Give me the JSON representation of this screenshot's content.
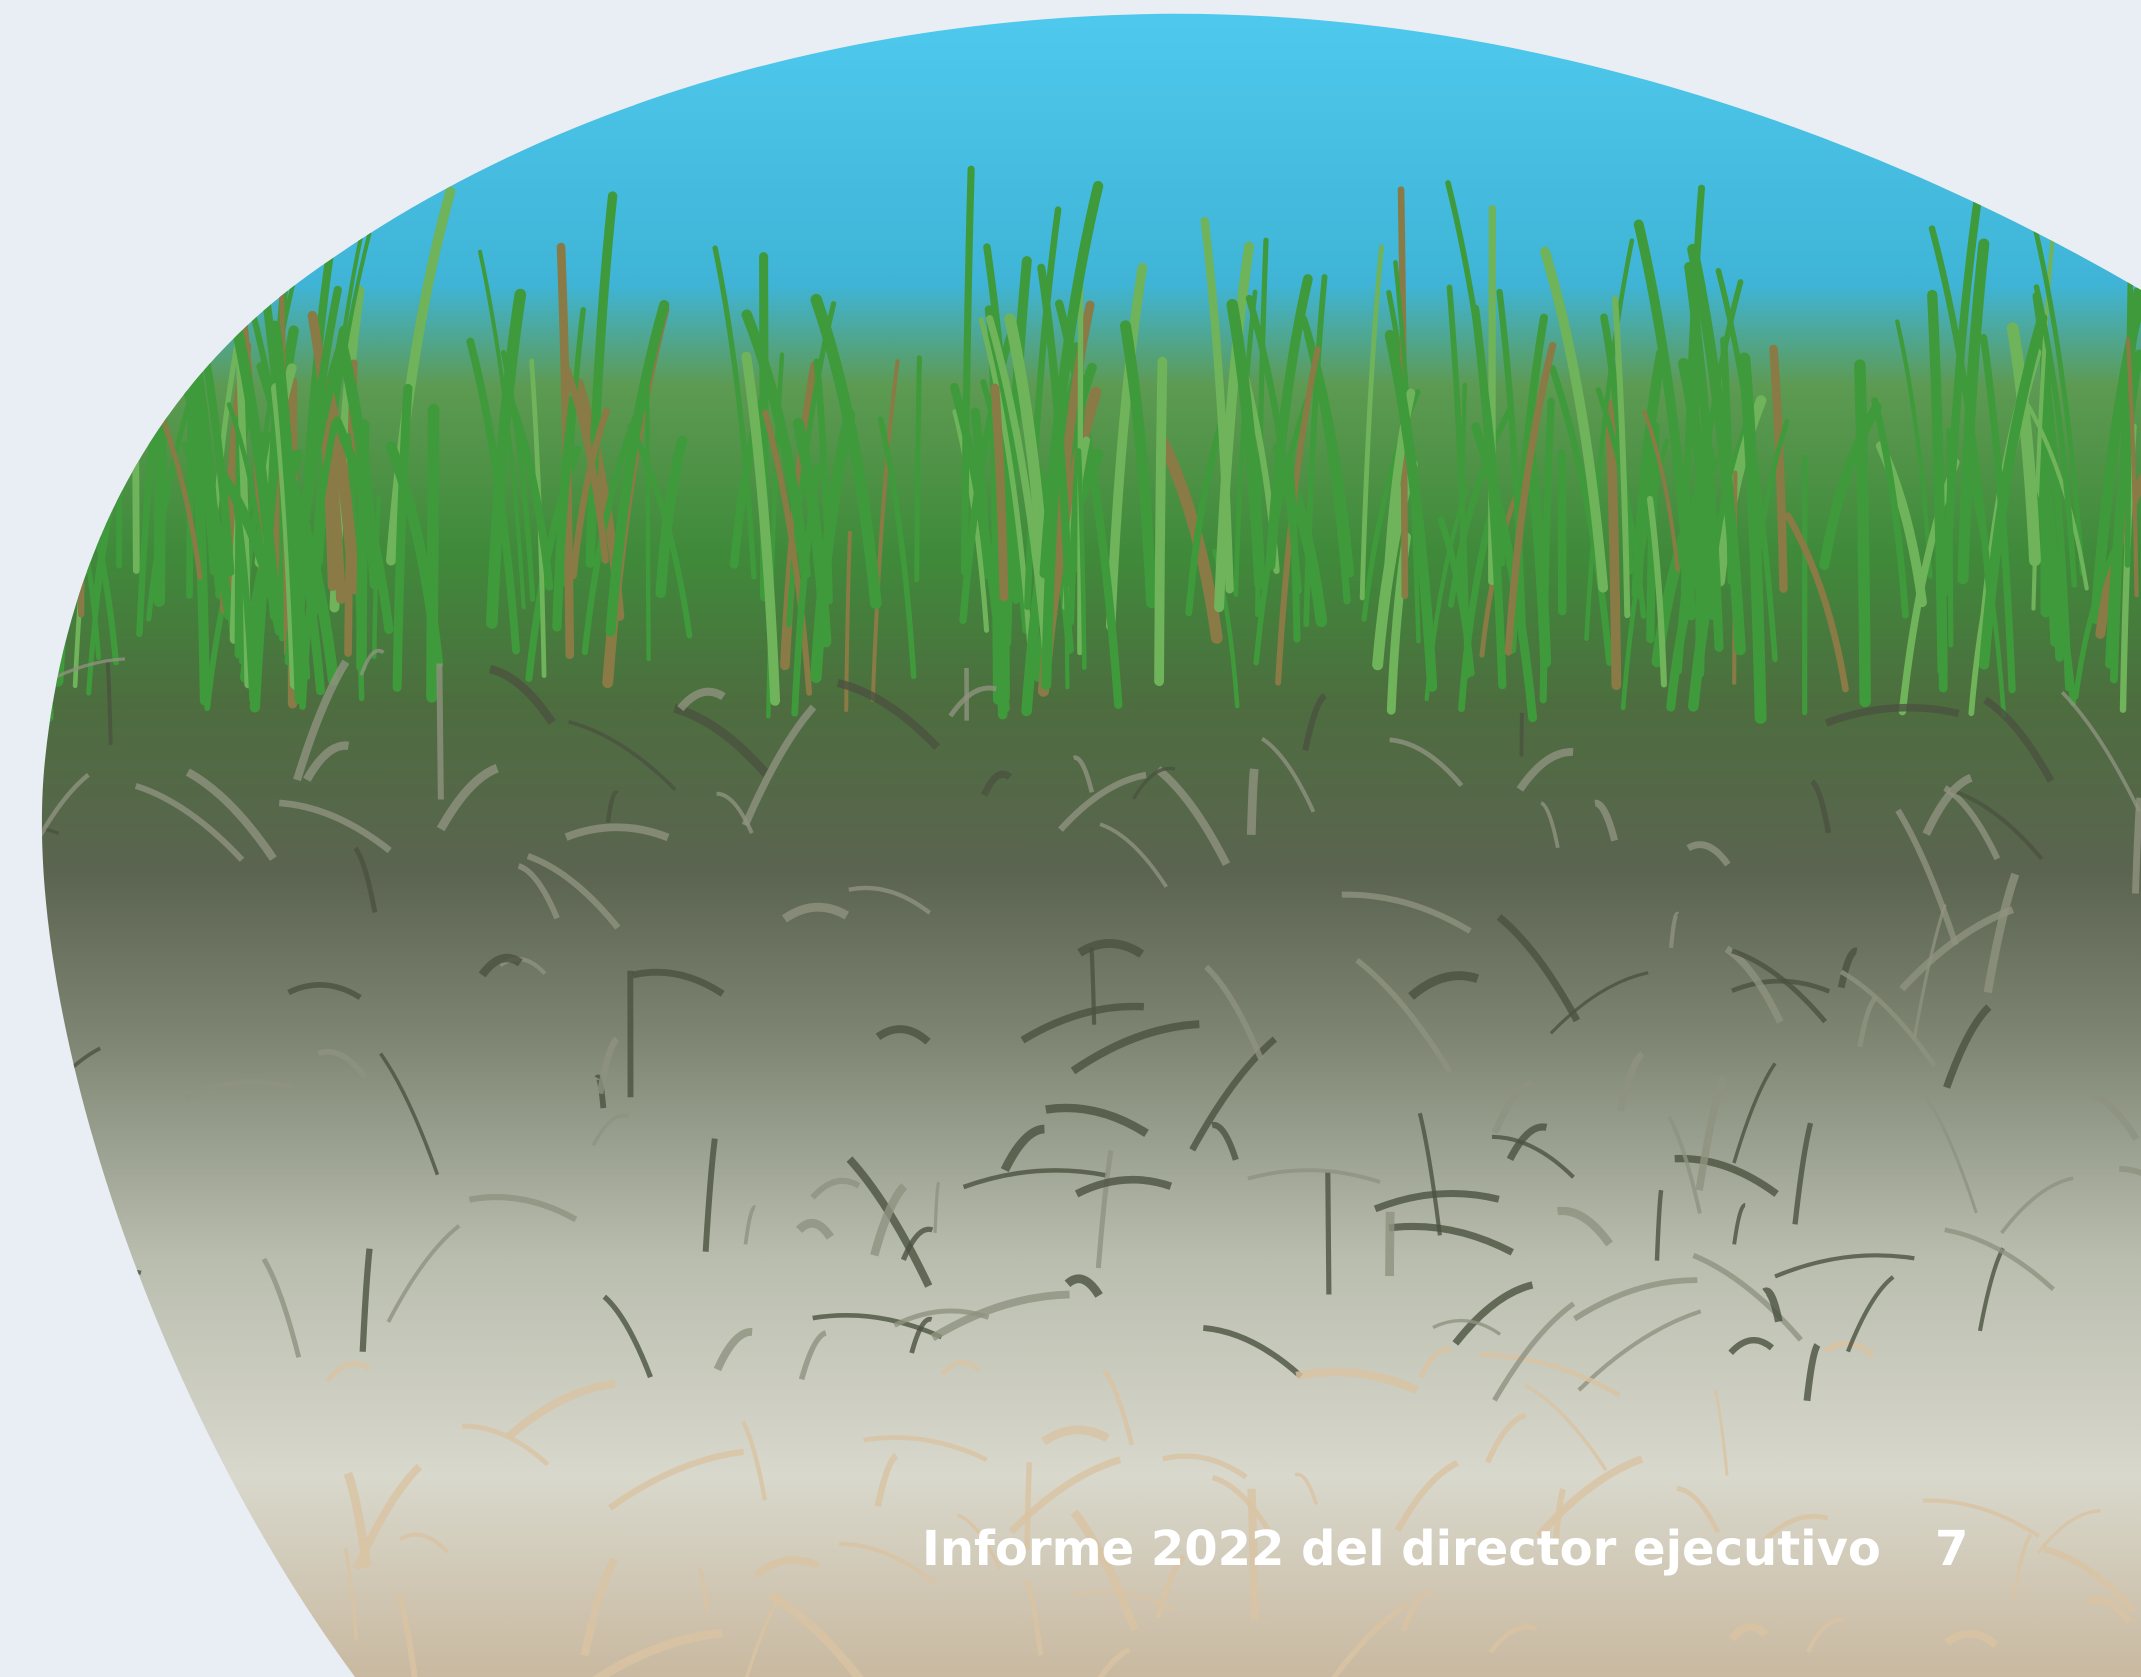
{
  "footer": {
    "title": "Informe 2022 del director ejecutivo",
    "page_number": "7"
  }
}
